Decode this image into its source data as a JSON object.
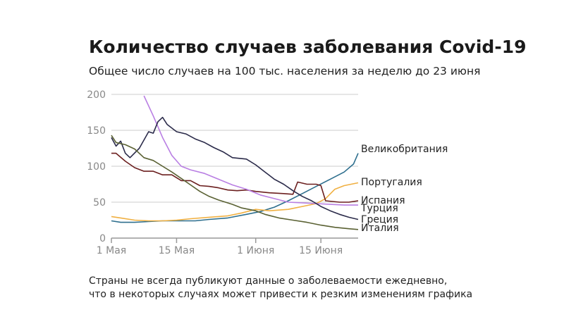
{
  "title": "Количество случаев заболевания Covid-19",
  "subtitle": "Общее число случаев на 100 тыс. населения за неделю до 23 июня",
  "note": [
    "Страны не всегда публикуют данные о заболеваемости ежедневно,",
    "что в некоторых случаях может привести к резким изменениям графика"
  ],
  "chart_data": {
    "type": "line",
    "title": "Количество случаев заболевания Covid-19",
    "subtitle": "Общее число случаев на 100 тыс. населения за неделю до 23 июня",
    "xlabel": "",
    "ylabel": "",
    "x_range": [
      "2020-05-01",
      "2020-06-23"
    ],
    "ylim": [
      0,
      200
    ],
    "y_ticks": [
      0,
      50,
      100,
      150,
      200
    ],
    "x_ticks": [
      {
        "date": "2020-05-01",
        "label": "1 Мая"
      },
      {
        "date": "2020-05-15",
        "label": "15 Мая"
      },
      {
        "date": "2020-06-01",
        "label": "1 Июня"
      },
      {
        "date": "2020-06-15",
        "label": "15 Июня"
      }
    ],
    "grid": "horizontal",
    "legend": "inline-right",
    "series": [
      {
        "name": "Великобритания",
        "color": "#2e6f8e",
        "points": [
          [
            "2020-05-01",
            24
          ],
          [
            "2020-05-03",
            22
          ],
          [
            "2020-05-06",
            22
          ],
          [
            "2020-05-09",
            23
          ],
          [
            "2020-05-12",
            24
          ],
          [
            "2020-05-15",
            24
          ],
          [
            "2020-05-19",
            24
          ],
          [
            "2020-05-22",
            26
          ],
          [
            "2020-05-26",
            28
          ],
          [
            "2020-05-30",
            33
          ],
          [
            "2020-06-02",
            37
          ],
          [
            "2020-06-05",
            43
          ],
          [
            "2020-06-08",
            52
          ],
          [
            "2020-06-11",
            62
          ],
          [
            "2020-06-14",
            72
          ],
          [
            "2020-06-17",
            82
          ],
          [
            "2020-06-20",
            92
          ],
          [
            "2020-06-22",
            103
          ],
          [
            "2020-06-23",
            118
          ]
        ]
      },
      {
        "name": "Португалия",
        "color": "#f0b042",
        "points": [
          [
            "2020-05-01",
            30
          ],
          [
            "2020-05-03",
            28
          ],
          [
            "2020-05-06",
            25
          ],
          [
            "2020-05-09",
            24
          ],
          [
            "2020-05-12",
            24
          ],
          [
            "2020-05-15",
            25
          ],
          [
            "2020-05-18",
            27
          ],
          [
            "2020-05-22",
            29
          ],
          [
            "2020-05-26",
            31
          ],
          [
            "2020-05-29",
            35
          ],
          [
            "2020-06-01",
            40
          ],
          [
            "2020-06-04",
            38
          ],
          [
            "2020-06-08",
            40
          ],
          [
            "2020-06-11",
            44
          ],
          [
            "2020-06-14",
            48
          ],
          [
            "2020-06-16",
            55
          ],
          [
            "2020-06-18",
            68
          ],
          [
            "2020-06-20",
            73
          ],
          [
            "2020-06-23",
            77
          ]
        ]
      },
      {
        "name": "Испания",
        "color": "#6b1f1f",
        "points": [
          [
            "2020-05-01",
            118
          ],
          [
            "2020-05-02",
            118
          ],
          [
            "2020-05-04",
            107
          ],
          [
            "2020-05-06",
            98
          ],
          [
            "2020-05-08",
            93
          ],
          [
            "2020-05-10",
            93
          ],
          [
            "2020-05-12",
            88
          ],
          [
            "2020-05-14",
            88
          ],
          [
            "2020-05-16",
            80
          ],
          [
            "2020-05-18",
            80
          ],
          [
            "2020-05-20",
            73
          ],
          [
            "2020-05-22",
            72
          ],
          [
            "2020-05-24",
            70
          ],
          [
            "2020-05-26",
            67
          ],
          [
            "2020-05-28",
            66
          ],
          [
            "2020-05-30",
            67
          ],
          [
            "2020-06-01",
            65
          ],
          [
            "2020-06-04",
            63
          ],
          [
            "2020-06-07",
            62
          ],
          [
            "2020-06-09",
            61
          ],
          [
            "2020-06-10",
            78
          ],
          [
            "2020-06-12",
            75
          ],
          [
            "2020-06-14",
            75
          ],
          [
            "2020-06-15",
            73
          ],
          [
            "2020-06-16",
            52
          ],
          [
            "2020-06-19",
            50
          ],
          [
            "2020-06-21",
            50
          ],
          [
            "2020-06-23",
            52
          ]
        ]
      },
      {
        "name": "Турция",
        "color": "#b97fe3",
        "points": [
          [
            "2020-05-08",
            198
          ],
          [
            "2020-05-10",
            170
          ],
          [
            "2020-05-12",
            140
          ],
          [
            "2020-05-14",
            115
          ],
          [
            "2020-05-16",
            100
          ],
          [
            "2020-05-18",
            95
          ],
          [
            "2020-05-21",
            90
          ],
          [
            "2020-05-24",
            82
          ],
          [
            "2020-05-27",
            74
          ],
          [
            "2020-05-30",
            68
          ],
          [
            "2020-06-02",
            60
          ],
          [
            "2020-06-05",
            55
          ],
          [
            "2020-06-08",
            50
          ],
          [
            "2020-06-11",
            49
          ],
          [
            "2020-06-14",
            48
          ],
          [
            "2020-06-17",
            47
          ],
          [
            "2020-06-20",
            46
          ],
          [
            "2020-06-23",
            46
          ]
        ]
      },
      {
        "name": "Греция",
        "color": "#2b2b4a",
        "points": [
          [
            "2020-05-01",
            140
          ],
          [
            "2020-05-02",
            128
          ],
          [
            "2020-05-03",
            135
          ],
          [
            "2020-05-04",
            118
          ],
          [
            "2020-05-05",
            112
          ],
          [
            "2020-05-07",
            125
          ],
          [
            "2020-05-09",
            148
          ],
          [
            "2020-05-10",
            146
          ],
          [
            "2020-05-11",
            162
          ],
          [
            "2020-05-12",
            168
          ],
          [
            "2020-05-13",
            158
          ],
          [
            "2020-05-15",
            148
          ],
          [
            "2020-05-17",
            145
          ],
          [
            "2020-05-19",
            138
          ],
          [
            "2020-05-21",
            133
          ],
          [
            "2020-05-23",
            126
          ],
          [
            "2020-05-25",
            120
          ],
          [
            "2020-05-27",
            112
          ],
          [
            "2020-05-30",
            110
          ],
          [
            "2020-06-01",
            102
          ],
          [
            "2020-06-03",
            92
          ],
          [
            "2020-06-05",
            82
          ],
          [
            "2020-06-07",
            75
          ],
          [
            "2020-06-09",
            66
          ],
          [
            "2020-06-11",
            58
          ],
          [
            "2020-06-13",
            52
          ],
          [
            "2020-06-15",
            44
          ],
          [
            "2020-06-17",
            38
          ],
          [
            "2020-06-19",
            33
          ],
          [
            "2020-06-21",
            29
          ],
          [
            "2020-06-23",
            26
          ]
        ]
      },
      {
        "name": "Италия",
        "color": "#5a6133",
        "points": [
          [
            "2020-05-01",
            143
          ],
          [
            "2020-05-02",
            133
          ],
          [
            "2020-05-04",
            130
          ],
          [
            "2020-05-06",
            124
          ],
          [
            "2020-05-08",
            112
          ],
          [
            "2020-05-10",
            108
          ],
          [
            "2020-05-12",
            100
          ],
          [
            "2020-05-14",
            92
          ],
          [
            "2020-05-16",
            83
          ],
          [
            "2020-05-18",
            74
          ],
          [
            "2020-05-20",
            65
          ],
          [
            "2020-05-22",
            58
          ],
          [
            "2020-05-24",
            53
          ],
          [
            "2020-05-27",
            47
          ],
          [
            "2020-05-29",
            42
          ],
          [
            "2020-06-01",
            38
          ],
          [
            "2020-06-03",
            33
          ],
          [
            "2020-06-06",
            28
          ],
          [
            "2020-06-09",
            25
          ],
          [
            "2020-06-12",
            22
          ],
          [
            "2020-06-15",
            18
          ],
          [
            "2020-06-18",
            15
          ],
          [
            "2020-06-21",
            13
          ],
          [
            "2020-06-23",
            12
          ]
        ]
      }
    ]
  }
}
